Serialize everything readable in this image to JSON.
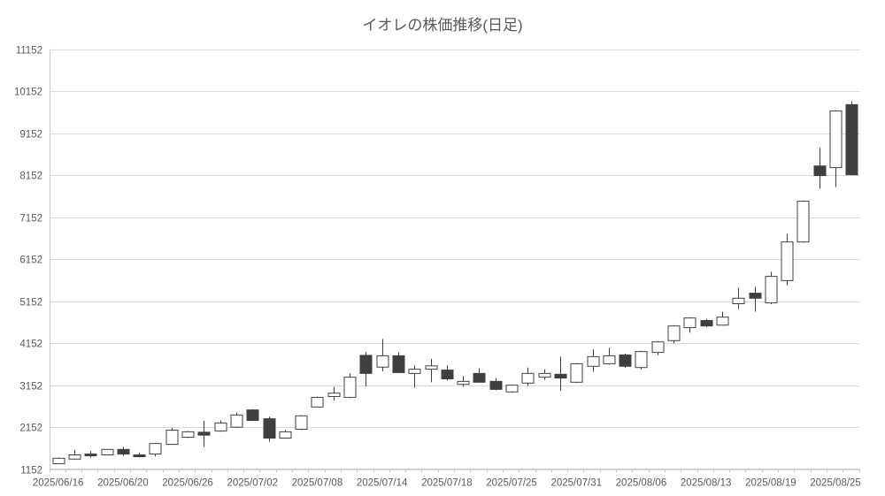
{
  "title": "イオレの株価推移(日足)",
  "chart_data": {
    "type": "candlestick",
    "title": "イオレの株価推移(日足)",
    "legend": "none",
    "grid": "horizontal",
    "y_axis": {
      "min": 1152,
      "max": 11152,
      "step": 1000,
      "tick_labels": [
        "1152",
        "2152",
        "3152",
        "4152",
        "5152",
        "6152",
        "7152",
        "8152",
        "9152",
        "10152",
        "11152"
      ]
    },
    "x_axis": {
      "tick_labels": [
        "2025/06/16",
        "2025/06/20",
        "2025/06/26",
        "2025/07/02",
        "2025/07/08",
        "2025/07/14",
        "2025/07/18",
        "2025/07/25",
        "2025/07/31",
        "2025/08/06",
        "2025/08/13",
        "2025/08/19",
        "2025/08/25"
      ],
      "label_every": 4
    },
    "colors": {
      "up_fill": "#ffffff",
      "down_fill": "#3f3f3f",
      "stroke": "#404040",
      "grid": "#d9d9d9",
      "axis": "#c9c9c9",
      "text": "#595959"
    },
    "candles": [
      {
        "date": "2025/06/16",
        "open": 1300,
        "high": 1450,
        "low": 1290,
        "close": 1430
      },
      {
        "date": "2025/06/17",
        "open": 1410,
        "high": 1630,
        "low": 1400,
        "close": 1510
      },
      {
        "date": "2025/06/18",
        "open": 1530,
        "high": 1610,
        "low": 1450,
        "close": 1490
      },
      {
        "date": "2025/06/19",
        "open": 1510,
        "high": 1650,
        "low": 1500,
        "close": 1640
      },
      {
        "date": "2025/06/20",
        "open": 1640,
        "high": 1700,
        "low": 1490,
        "close": 1530
      },
      {
        "date": "2025/06/23",
        "open": 1510,
        "high": 1560,
        "low": 1450,
        "close": 1470
      },
      {
        "date": "2025/06/24",
        "open": 1530,
        "high": 1790,
        "low": 1470,
        "close": 1780
      },
      {
        "date": "2025/06/25",
        "open": 1760,
        "high": 2160,
        "low": 1750,
        "close": 2100
      },
      {
        "date": "2025/06/26",
        "open": 1930,
        "high": 2080,
        "low": 1910,
        "close": 2060
      },
      {
        "date": "2025/06/27",
        "open": 2050,
        "high": 2320,
        "low": 1700,
        "close": 1980
      },
      {
        "date": "2025/06/30",
        "open": 2080,
        "high": 2330,
        "low": 2060,
        "close": 2270
      },
      {
        "date": "2025/07/01",
        "open": 2170,
        "high": 2520,
        "low": 2150,
        "close": 2460
      },
      {
        "date": "2025/07/02",
        "open": 2580,
        "high": 2600,
        "low": 2320,
        "close": 2330
      },
      {
        "date": "2025/07/03",
        "open": 2370,
        "high": 2420,
        "low": 1820,
        "close": 1910
      },
      {
        "date": "2025/07/04",
        "open": 1910,
        "high": 2100,
        "low": 1900,
        "close": 2060
      },
      {
        "date": "2025/07/07",
        "open": 2120,
        "high": 2460,
        "low": 2100,
        "close": 2440
      },
      {
        "date": "2025/07/08",
        "open": 2650,
        "high": 2900,
        "low": 2640,
        "close": 2880
      },
      {
        "date": "2025/07/09",
        "open": 2900,
        "high": 3130,
        "low": 2800,
        "close": 2980
      },
      {
        "date": "2025/07/10",
        "open": 2880,
        "high": 3450,
        "low": 2860,
        "close": 3360
      },
      {
        "date": "2025/07/11",
        "open": 3880,
        "high": 3960,
        "low": 3140,
        "close": 3450
      },
      {
        "date": "2025/07/14",
        "open": 3600,
        "high": 4270,
        "low": 3500,
        "close": 3870
      },
      {
        "date": "2025/07/15",
        "open": 3870,
        "high": 3950,
        "low": 3460,
        "close": 3470
      },
      {
        "date": "2025/07/16",
        "open": 3450,
        "high": 3640,
        "low": 3110,
        "close": 3550
      },
      {
        "date": "2025/07/17",
        "open": 3550,
        "high": 3800,
        "low": 3240,
        "close": 3630
      },
      {
        "date": "2025/07/18",
        "open": 3530,
        "high": 3640,
        "low": 3280,
        "close": 3320
      },
      {
        "date": "2025/07/22",
        "open": 3190,
        "high": 3380,
        "low": 3130,
        "close": 3260
      },
      {
        "date": "2025/07/23",
        "open": 3450,
        "high": 3570,
        "low": 3230,
        "close": 3240
      },
      {
        "date": "2025/07/24",
        "open": 3260,
        "high": 3340,
        "low": 3050,
        "close": 3070
      },
      {
        "date": "2025/07/25",
        "open": 3010,
        "high": 3190,
        "low": 2990,
        "close": 3170
      },
      {
        "date": "2025/07/28",
        "open": 3220,
        "high": 3590,
        "low": 3150,
        "close": 3450
      },
      {
        "date": "2025/07/29",
        "open": 3360,
        "high": 3550,
        "low": 3300,
        "close": 3450
      },
      {
        "date": "2025/07/30",
        "open": 3430,
        "high": 3850,
        "low": 3030,
        "close": 3340
      },
      {
        "date": "2025/07/31",
        "open": 3240,
        "high": 3700,
        "low": 3220,
        "close": 3680
      },
      {
        "date": "2025/08/01",
        "open": 3620,
        "high": 4020,
        "low": 3490,
        "close": 3850
      },
      {
        "date": "2025/08/04",
        "open": 3680,
        "high": 4060,
        "low": 3660,
        "close": 3870
      },
      {
        "date": "2025/08/05",
        "open": 3890,
        "high": 3920,
        "low": 3580,
        "close": 3620
      },
      {
        "date": "2025/08/06",
        "open": 3590,
        "high": 3990,
        "low": 3540,
        "close": 3970
      },
      {
        "date": "2025/08/07",
        "open": 3950,
        "high": 4220,
        "low": 3880,
        "close": 4200
      },
      {
        "date": "2025/08/08",
        "open": 4230,
        "high": 4600,
        "low": 4160,
        "close": 4580
      },
      {
        "date": "2025/08/12",
        "open": 4540,
        "high": 4790,
        "low": 4420,
        "close": 4770
      },
      {
        "date": "2025/08/13",
        "open": 4710,
        "high": 4750,
        "low": 4550,
        "close": 4580
      },
      {
        "date": "2025/08/14",
        "open": 4600,
        "high": 4920,
        "low": 4590,
        "close": 4790
      },
      {
        "date": "2025/08/15",
        "open": 5110,
        "high": 5490,
        "low": 4980,
        "close": 5240
      },
      {
        "date": "2025/08/18",
        "open": 5360,
        "high": 5510,
        "low": 4920,
        "close": 5240
      },
      {
        "date": "2025/08/19",
        "open": 5130,
        "high": 5870,
        "low": 5100,
        "close": 5760
      },
      {
        "date": "2025/08/20",
        "open": 5660,
        "high": 6770,
        "low": 5550,
        "close": 6580
      },
      {
        "date": "2025/08/21",
        "open": 6580,
        "high": 7570,
        "low": 6560,
        "close": 7550
      },
      {
        "date": "2025/08/22",
        "open": 8390,
        "high": 8820,
        "low": 7850,
        "close": 8160
      },
      {
        "date": "2025/08/25",
        "open": 8350,
        "high": 9700,
        "low": 7890,
        "close": 9700
      },
      {
        "date": "2025/08/26",
        "open": 9850,
        "high": 9930,
        "low": 8170,
        "close": 8180
      }
    ]
  }
}
